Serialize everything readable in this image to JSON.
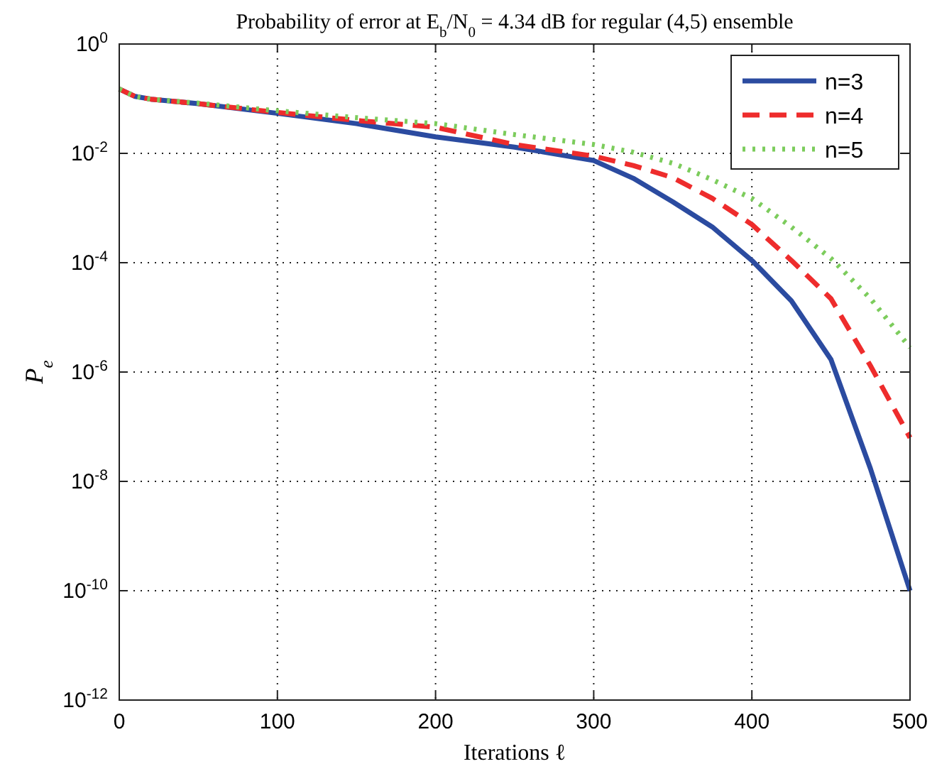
{
  "chart_data": {
    "type": "line",
    "title": "Probability of error at E$_{b}$/N$_{0}$ = 4.34 dB for regular (4,5) ensemble",
    "xlabel": "Iterations ℓ",
    "ylabel": "P$_{e}$",
    "log": "y",
    "grid": true,
    "legend": "top right",
    "xlim": [
      0,
      500
    ],
    "xticks": [
      0,
      100,
      200,
      300,
      400,
      500
    ],
    "ylim": [
      1e-12,
      1
    ],
    "yticks": [
      {
        "value": 1,
        "label": "10$^{0}$"
      },
      {
        "value": 0.01,
        "label": "10$^{-2}$"
      },
      {
        "value": 0.0001,
        "label": "10$^{-4}$"
      },
      {
        "value": 1e-06,
        "label": "10$^{-6}$"
      },
      {
        "value": 1e-08,
        "label": "10$^{-8}$"
      },
      {
        "value": 1e-10,
        "label": "10$^{-10}$"
      },
      {
        "value": 1e-12,
        "label": "10$^{-12}$"
      }
    ],
    "x": [
      0,
      10,
      20,
      50,
      100,
      150,
      200,
      250,
      300,
      325,
      350,
      375,
      400,
      425,
      450,
      475,
      500
    ],
    "series": [
      {
        "name": "n=3",
        "color": "#2b4ba0",
        "line_style": "solid",
        "values": [
          0.15,
          0.11,
          0.098,
          0.081,
          0.054,
          0.035,
          0.02,
          0.013,
          0.0074,
          0.0035,
          0.0013,
          0.00045,
          0.00011,
          2e-05,
          1.7e-06,
          1.7e-08,
          1e-10
        ]
      },
      {
        "name": "n=4",
        "color": "#ee2c2c",
        "line_style": "dashed",
        "values": [
          0.15,
          0.11,
          0.098,
          0.081,
          0.056,
          0.04,
          0.03,
          0.0145,
          0.0089,
          0.006,
          0.0036,
          0.0015,
          0.0005,
          0.00011,
          2.2e-05,
          1.3e-06,
          6.3e-08
        ]
      },
      {
        "name": "n=5",
        "color": "#7ccc5c",
        "line_style": "dotted",
        "values": [
          0.15,
          0.11,
          0.098,
          0.083,
          0.06,
          0.045,
          0.035,
          0.022,
          0.0145,
          0.0105,
          0.0066,
          0.0033,
          0.0015,
          0.00045,
          0.00012,
          2.2e-05,
          2.8e-06
        ]
      }
    ]
  }
}
